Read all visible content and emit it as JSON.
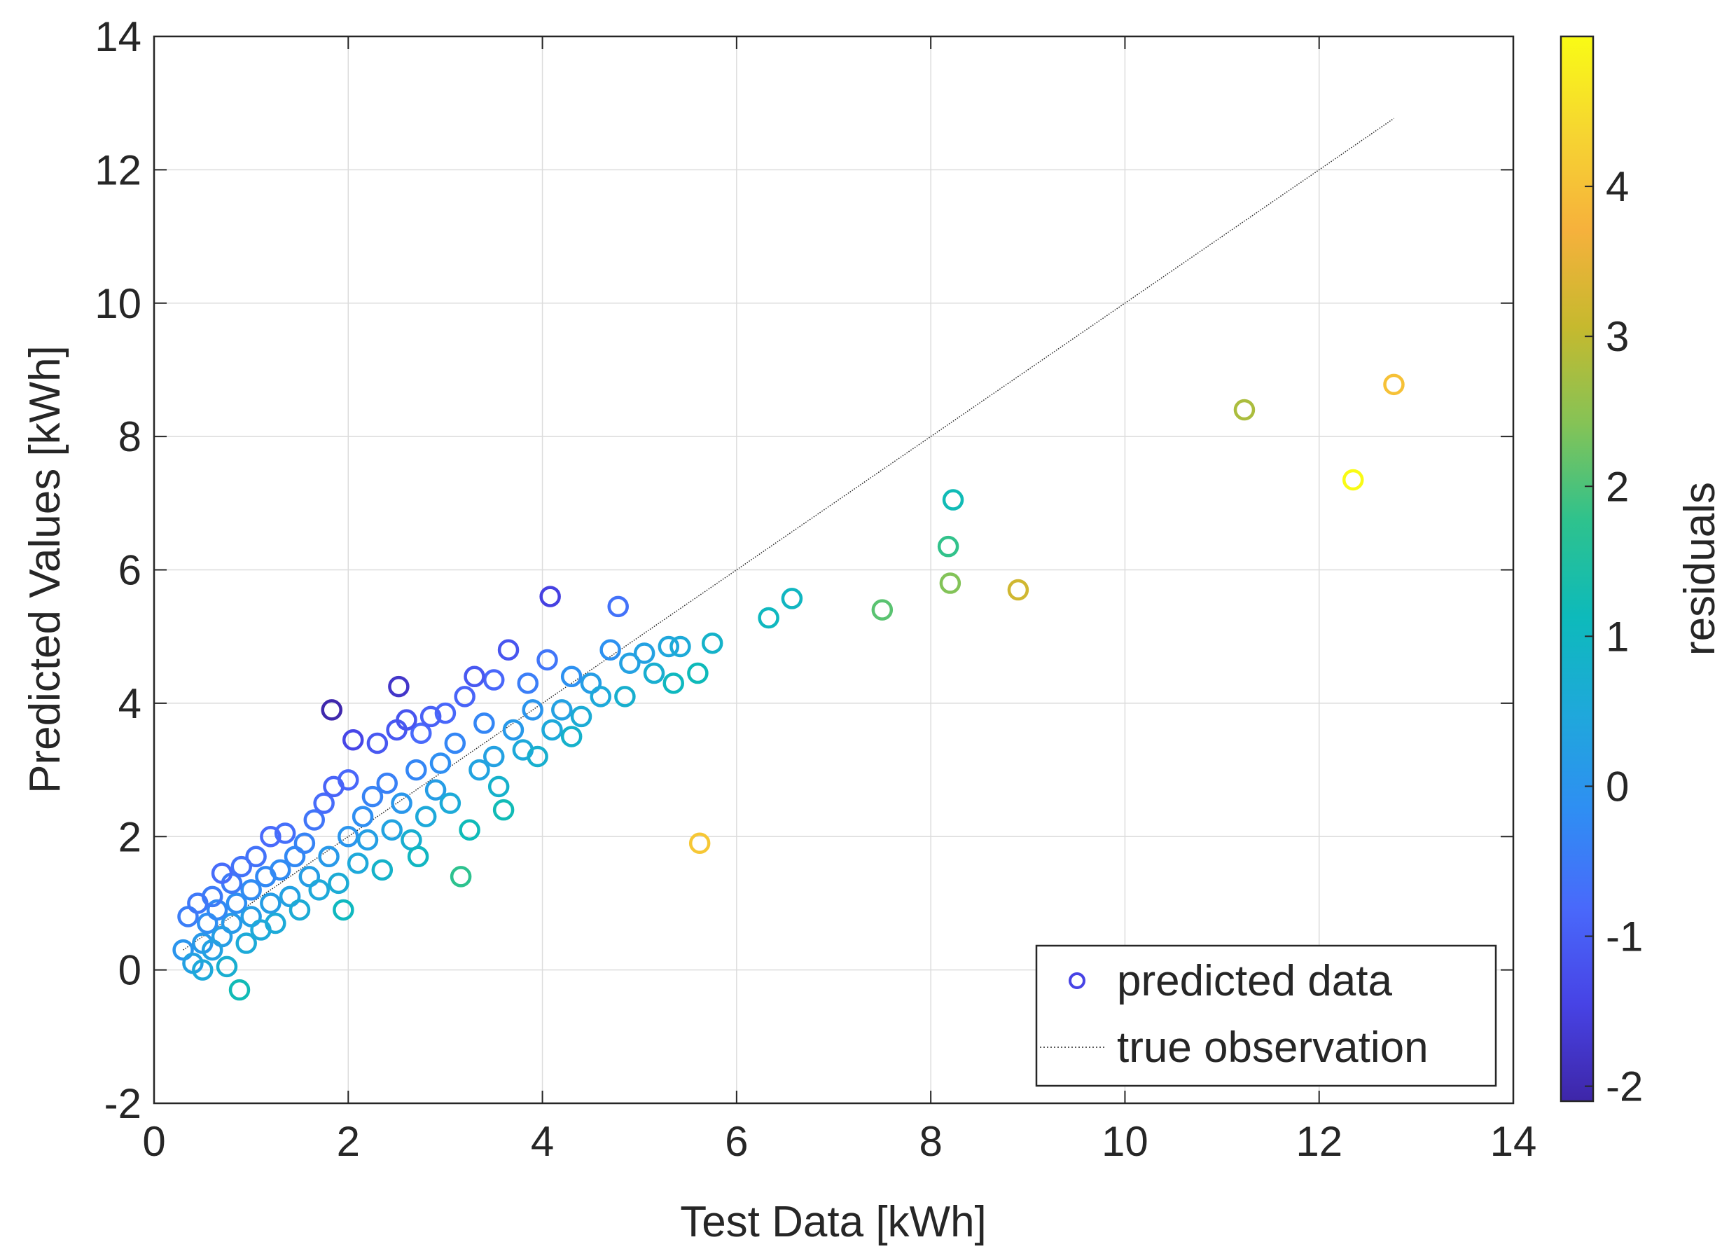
{
  "chart_data": {
    "type": "scatter",
    "title": "",
    "xlabel": "Test Data [kWh]",
    "ylabel": "Predicted Values [kWh]",
    "xlim": [
      0,
      14
    ],
    "ylim": [
      -2,
      14
    ],
    "x_ticks": [
      0,
      2,
      4,
      6,
      8,
      10,
      12,
      14
    ],
    "y_ticks": [
      -2,
      0,
      2,
      4,
      6,
      8,
      10,
      12,
      14
    ],
    "x_tick_labels": [
      "0",
      "2",
      "4",
      "6",
      "8",
      "10",
      "12",
      "14"
    ],
    "y_tick_labels": [
      "-2",
      "0",
      "2",
      "4",
      "6",
      "8",
      "10",
      "12",
      "14"
    ],
    "grid": true,
    "legend": {
      "placement": "bottom-right",
      "entries": [
        "predicted data",
        "true observation"
      ]
    },
    "colorbar": {
      "label": "residuals",
      "range": [
        -2.1,
        5.0
      ],
      "ticks": [
        -2,
        -1,
        0,
        1,
        2,
        3,
        4
      ],
      "tick_labels": [
        "-2",
        "-1",
        "0",
        "1",
        "2",
        "3",
        "4"
      ],
      "colormap": [
        "#3e26a8",
        "#4743e5",
        "#4969fb",
        "#2f8ef3",
        "#1fa8db",
        "#0dbabb",
        "#2ec28d",
        "#85c356",
        "#c6b92e",
        "#f6b13c",
        "#f6d531",
        "#f9fb15"
      ]
    },
    "series": [
      {
        "name": "predicted data",
        "kind": "scatter",
        "marker": "circle-open",
        "color_by": "residual",
        "points": [
          {
            "x": 0.3,
            "y": 0.3,
            "r": 0.0
          },
          {
            "x": 0.35,
            "y": 0.8,
            "r": -0.45
          },
          {
            "x": 0.4,
            "y": 0.1,
            "r": 0.3
          },
          {
            "x": 0.45,
            "y": 1.0,
            "r": -0.55
          },
          {
            "x": 0.5,
            "y": 0.4,
            "r": 0.1
          },
          {
            "x": 0.5,
            "y": 0.0,
            "r": 0.5
          },
          {
            "x": 0.55,
            "y": 0.7,
            "r": -0.15
          },
          {
            "x": 0.6,
            "y": 1.1,
            "r": -0.5
          },
          {
            "x": 0.6,
            "y": 0.3,
            "r": 0.3
          },
          {
            "x": 0.65,
            "y": 0.9,
            "r": -0.25
          },
          {
            "x": 0.7,
            "y": 1.45,
            "r": -0.75
          },
          {
            "x": 0.7,
            "y": 0.5,
            "r": 0.2
          },
          {
            "x": 0.75,
            "y": 0.05,
            "r": 0.7
          },
          {
            "x": 0.8,
            "y": 1.3,
            "r": -0.5
          },
          {
            "x": 0.8,
            "y": 0.7,
            "r": 0.1
          },
          {
            "x": 0.85,
            "y": 1.0,
            "r": -0.15
          },
          {
            "x": 0.88,
            "y": -0.3,
            "r": 1.2
          },
          {
            "x": 0.9,
            "y": 1.55,
            "r": -0.65
          },
          {
            "x": 0.95,
            "y": 0.4,
            "r": 0.55
          },
          {
            "x": 1.0,
            "y": 1.2,
            "r": -0.2
          },
          {
            "x": 1.0,
            "y": 0.8,
            "r": 0.2
          },
          {
            "x": 1.05,
            "y": 1.7,
            "r": -0.65
          },
          {
            "x": 1.1,
            "y": 0.6,
            "r": 0.5
          },
          {
            "x": 1.15,
            "y": 1.4,
            "r": -0.25
          },
          {
            "x": 1.2,
            "y": 2.0,
            "r": -0.8
          },
          {
            "x": 1.2,
            "y": 1.0,
            "r": 0.2
          },
          {
            "x": 1.25,
            "y": 0.7,
            "r": 0.55
          },
          {
            "x": 1.3,
            "y": 1.5,
            "r": -0.2
          },
          {
            "x": 1.35,
            "y": 2.05,
            "r": -0.7
          },
          {
            "x": 1.4,
            "y": 1.1,
            "r": 0.3
          },
          {
            "x": 1.45,
            "y": 1.7,
            "r": -0.25
          },
          {
            "x": 1.5,
            "y": 0.9,
            "r": 0.6
          },
          {
            "x": 1.55,
            "y": 1.9,
            "r": -0.35
          },
          {
            "x": 1.6,
            "y": 1.4,
            "r": 0.2
          },
          {
            "x": 1.65,
            "y": 2.25,
            "r": -0.6
          },
          {
            "x": 1.7,
            "y": 1.2,
            "r": 0.5
          },
          {
            "x": 1.75,
            "y": 2.5,
            "r": -0.75
          },
          {
            "x": 1.8,
            "y": 1.7,
            "r": 0.1
          },
          {
            "x": 1.83,
            "y": 3.9,
            "r": -2.05
          },
          {
            "x": 1.85,
            "y": 2.75,
            "r": -0.9
          },
          {
            "x": 1.9,
            "y": 1.3,
            "r": 0.6
          },
          {
            "x": 1.95,
            "y": 0.9,
            "r": 1.05
          },
          {
            "x": 2.0,
            "y": 2.0,
            "r": 0.0
          },
          {
            "x": 2.0,
            "y": 2.85,
            "r": -0.85
          },
          {
            "x": 2.05,
            "y": 3.45,
            "r": -1.4
          },
          {
            "x": 2.1,
            "y": 1.6,
            "r": 0.5
          },
          {
            "x": 2.15,
            "y": 2.3,
            "r": -0.15
          },
          {
            "x": 2.2,
            "y": 1.95,
            "r": 0.25
          },
          {
            "x": 2.25,
            "y": 2.6,
            "r": -0.35
          },
          {
            "x": 2.3,
            "y": 3.4,
            "r": -1.1
          },
          {
            "x": 2.35,
            "y": 1.5,
            "r": 0.85
          },
          {
            "x": 2.4,
            "y": 2.8,
            "r": -0.4
          },
          {
            "x": 2.45,
            "y": 2.1,
            "r": 0.35
          },
          {
            "x": 2.5,
            "y": 3.6,
            "r": -1.1
          },
          {
            "x": 2.52,
            "y": 4.25,
            "r": -1.75
          },
          {
            "x": 2.55,
            "y": 2.5,
            "r": 0.05
          },
          {
            "x": 2.6,
            "y": 3.75,
            "r": -1.15
          },
          {
            "x": 2.65,
            "y": 1.95,
            "r": 0.7
          },
          {
            "x": 2.7,
            "y": 3.0,
            "r": -0.3
          },
          {
            "x": 2.72,
            "y": 1.7,
            "r": 1.0
          },
          {
            "x": 2.75,
            "y": 3.55,
            "r": -0.8
          },
          {
            "x": 2.8,
            "y": 2.3,
            "r": 0.5
          },
          {
            "x": 2.85,
            "y": 3.8,
            "r": -0.95
          },
          {
            "x": 2.9,
            "y": 2.7,
            "r": 0.2
          },
          {
            "x": 2.95,
            "y": 3.1,
            "r": -0.15
          },
          {
            "x": 3.0,
            "y": 3.85,
            "r": -0.85
          },
          {
            "x": 3.05,
            "y": 2.5,
            "r": 0.55
          },
          {
            "x": 3.1,
            "y": 3.4,
            "r": -0.3
          },
          {
            "x": 3.16,
            "y": 1.4,
            "r": 1.75
          },
          {
            "x": 3.2,
            "y": 4.1,
            "r": -0.9
          },
          {
            "x": 3.25,
            "y": 2.1,
            "r": 1.15
          },
          {
            "x": 3.3,
            "y": 4.4,
            "r": -1.1
          },
          {
            "x": 3.35,
            "y": 3.0,
            "r": 0.35
          },
          {
            "x": 3.4,
            "y": 3.7,
            "r": -0.3
          },
          {
            "x": 3.5,
            "y": 4.35,
            "r": -0.85
          },
          {
            "x": 3.5,
            "y": 3.2,
            "r": 0.3
          },
          {
            "x": 3.55,
            "y": 2.75,
            "r": 0.8
          },
          {
            "x": 3.6,
            "y": 2.4,
            "r": 1.2
          },
          {
            "x": 3.65,
            "y": 4.8,
            "r": -1.15
          },
          {
            "x": 3.7,
            "y": 3.6,
            "r": 0.1
          },
          {
            "x": 3.8,
            "y": 3.3,
            "r": 0.5
          },
          {
            "x": 3.85,
            "y": 4.3,
            "r": -0.45
          },
          {
            "x": 3.9,
            "y": 3.9,
            "r": 0.0
          },
          {
            "x": 3.95,
            "y": 3.2,
            "r": 0.75
          },
          {
            "x": 4.05,
            "y": 4.65,
            "r": -0.6
          },
          {
            "x": 4.08,
            "y": 5.6,
            "r": -1.5
          },
          {
            "x": 4.1,
            "y": 3.6,
            "r": 0.5
          },
          {
            "x": 4.2,
            "y": 3.9,
            "r": 0.3
          },
          {
            "x": 4.3,
            "y": 4.4,
            "r": -0.1
          },
          {
            "x": 4.3,
            "y": 3.5,
            "r": 0.8
          },
          {
            "x": 4.4,
            "y": 3.8,
            "r": 0.6
          },
          {
            "x": 4.5,
            "y": 4.3,
            "r": 0.2
          },
          {
            "x": 4.6,
            "y": 4.1,
            "r": 0.5
          },
          {
            "x": 4.7,
            "y": 4.8,
            "r": -0.1
          },
          {
            "x": 4.78,
            "y": 5.45,
            "r": -0.65
          },
          {
            "x": 4.85,
            "y": 4.1,
            "r": 0.75
          },
          {
            "x": 4.9,
            "y": 4.6,
            "r": 0.3
          },
          {
            "x": 5.05,
            "y": 4.75,
            "r": 0.3
          },
          {
            "x": 5.15,
            "y": 4.45,
            "r": 0.7
          },
          {
            "x": 5.3,
            "y": 4.85,
            "r": 0.45
          },
          {
            "x": 5.35,
            "y": 4.3,
            "r": 1.05
          },
          {
            "x": 5.42,
            "y": 4.85,
            "r": 0.55
          },
          {
            "x": 5.6,
            "y": 4.45,
            "r": 1.15
          },
          {
            "x": 5.62,
            "y": 1.9,
            "r": 4.1
          },
          {
            "x": 5.75,
            "y": 4.9,
            "r": 0.85
          },
          {
            "x": 6.33,
            "y": 5.28,
            "r": 1.05
          },
          {
            "x": 6.57,
            "y": 5.57,
            "r": 1.0
          },
          {
            "x": 7.5,
            "y": 5.4,
            "r": 2.1
          },
          {
            "x": 8.18,
            "y": 6.35,
            "r": 1.8
          },
          {
            "x": 8.2,
            "y": 5.8,
            "r": 2.4
          },
          {
            "x": 8.23,
            "y": 7.05,
            "r": 1.2
          },
          {
            "x": 8.9,
            "y": 5.7,
            "r": 3.2
          },
          {
            "x": 11.23,
            "y": 8.4,
            "r": 2.8
          },
          {
            "x": 12.35,
            "y": 7.35,
            "r": 5.0
          },
          {
            "x": 12.77,
            "y": 8.78,
            "r": 4.0
          }
        ]
      },
      {
        "name": "true observation",
        "kind": "line",
        "style": "dotted",
        "x": [
          0.3,
          12.77
        ],
        "y": [
          0.3,
          12.77
        ]
      }
    ]
  }
}
